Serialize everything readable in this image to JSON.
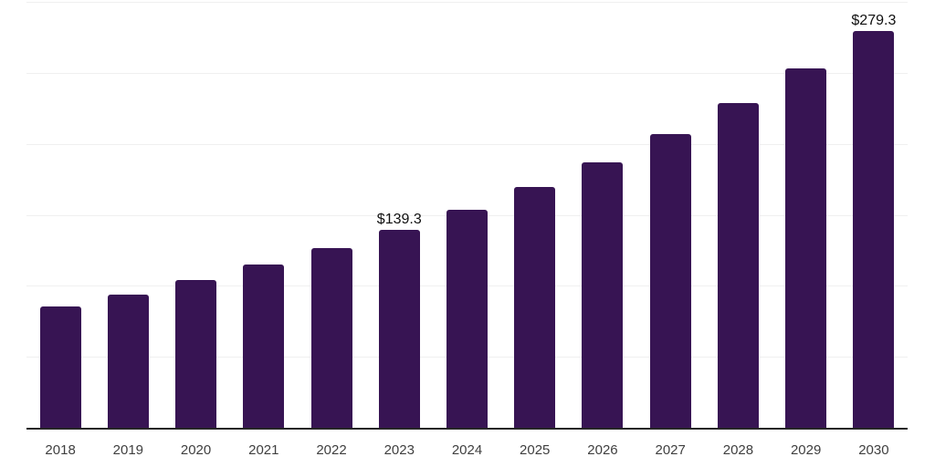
{
  "chart_data": {
    "type": "bar",
    "title": "",
    "xlabel": "",
    "ylabel": "",
    "categories": [
      "2018",
      "2019",
      "2020",
      "2021",
      "2022",
      "2023",
      "2024",
      "2025",
      "2026",
      "2027",
      "2028",
      "2029",
      "2030"
    ],
    "values": [
      85.4,
      93.8,
      104.1,
      115.0,
      126.6,
      139.3,
      153.8,
      169.7,
      186.9,
      206.8,
      228.6,
      253.0,
      279.3
    ],
    "ylim": [
      0,
      300
    ],
    "gridline_step": 50,
    "grid": true,
    "legend": false,
    "y_axis_labels_visible": false,
    "annotations": [
      {
        "category": "2023",
        "text": "$139.3"
      },
      {
        "category": "2030",
        "text": "$279.3"
      }
    ]
  },
  "colors": {
    "bar": "#371453",
    "axis_line": "#262626",
    "gridline": "#f0f0f0",
    "tick_label": "#3f3f3f",
    "value_label": "#101010",
    "background": "#ffffff"
  }
}
